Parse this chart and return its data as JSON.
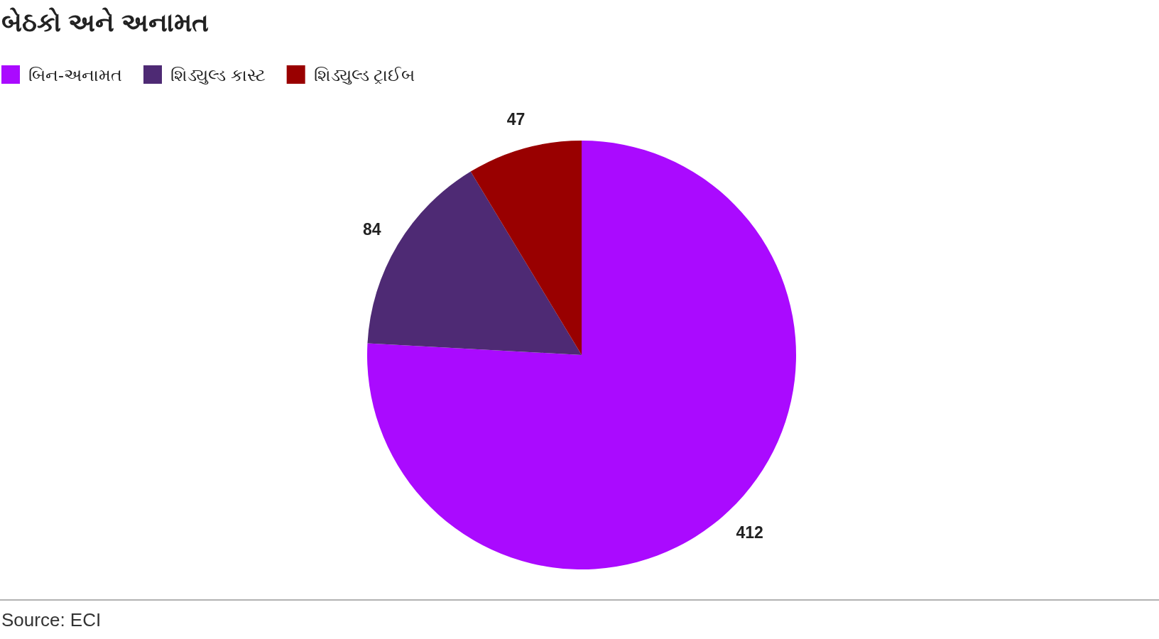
{
  "chart_data": {
    "type": "pie",
    "title": "બેઠકો અને અનામત",
    "categories": [
      "બિન-અનામત",
      "શિડ્યુલ્ડ કાસ્ટ",
      "શિડ્યુલ્ડ ટ્રાઈબ"
    ],
    "values": [
      412,
      84,
      47
    ],
    "colors": [
      "#aa0aff",
      "#4e2a74",
      "#990000"
    ],
    "data_labels": true,
    "legend": "top left",
    "annotations": [
      "Source: ECI"
    ]
  }
}
